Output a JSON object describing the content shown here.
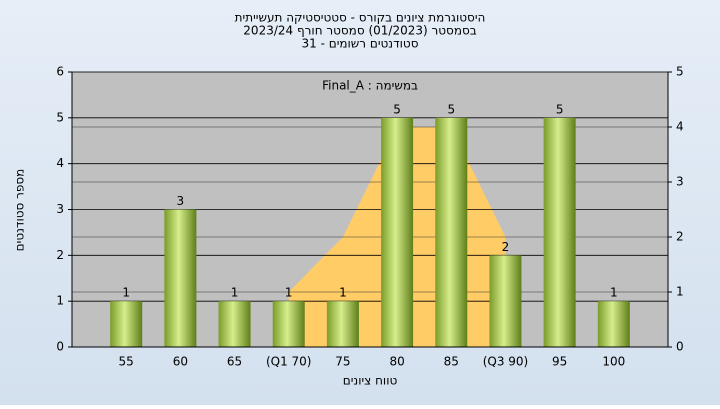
{
  "chart_data": {
    "type": "bar",
    "title": "היסטוגרמת ציונים בקורס - סטטיסטיקה תעשייתית",
    "subtitle": "בסמסטר  (01/2023)  סמסטר חורף 2023/24",
    "subtitle2": "סטודנטים רשומים - 31",
    "annotation": "במשימה : Final_A",
    "x_label": "טווח ציונים",
    "y_label": "מספר סטודנטים",
    "categories": [
      "55",
      "60",
      "65",
      "(Q1 70)",
      "75",
      "80",
      "85",
      "(Q3 90)",
      "95",
      "100"
    ],
    "series": [
      {
        "values": [
          1,
          3,
          1,
          1,
          1,
          5,
          5,
          2,
          5,
          1
        ],
        "color": "#9cc44a"
      },
      {
        "values": [
          null,
          null,
          null,
          1,
          2,
          4,
          4,
          2,
          null,
          null
        ],
        "color": "#ffcc66",
        "axis": "y2"
      }
    ],
    "ylim": [
      0,
      6
    ],
    "yticks": [
      0,
      1,
      2,
      3,
      4,
      5,
      6
    ],
    "y2lim": [
      0,
      5
    ],
    "y2ticks": [
      0,
      1,
      2,
      3,
      4,
      5
    ],
    "grid": true
  }
}
